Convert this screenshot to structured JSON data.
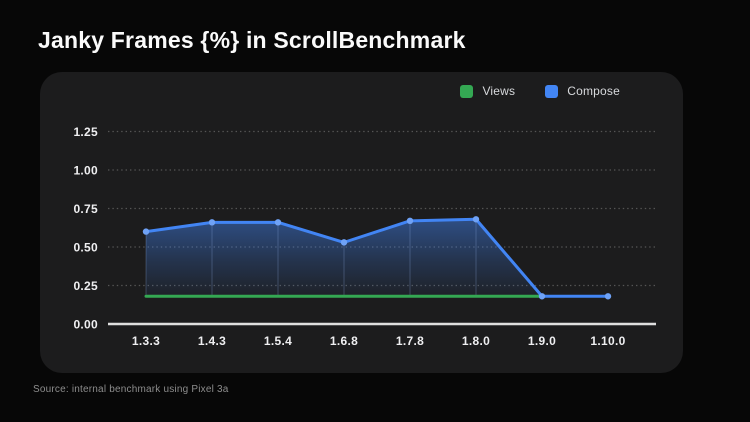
{
  "page": {
    "title": "Janky Frames {%} in ScrollBenchmark",
    "source_note": "Source: internal benchmark using Pixel 3a"
  },
  "legend": [
    {
      "label": "Views",
      "color": "#34A853"
    },
    {
      "label": "Compose",
      "color": "#4285F4"
    }
  ],
  "chart_data": {
    "type": "line",
    "title": "Janky Frames {%} in ScrollBenchmark",
    "categories": [
      "1.3.3",
      "1.4.3",
      "1.5.4",
      "1.6.8",
      "1.7.8",
      "1.8.0",
      "1.9.0",
      "1.10.0"
    ],
    "series": [
      {
        "name": "Views",
        "color": "#34A853",
        "values": [
          0.18,
          0.18,
          0.18,
          0.18,
          0.18,
          0.18,
          0.18,
          null
        ],
        "markers": false,
        "area": false
      },
      {
        "name": "Compose",
        "color": "#4285F4",
        "marker_color": "#6FA2F6",
        "values": [
          0.6,
          0.66,
          0.66,
          0.53,
          0.67,
          0.68,
          0.18,
          0.18
        ],
        "markers": true,
        "area": true
      }
    ],
    "ylim": [
      0,
      1.25
    ],
    "yticks": [
      0,
      0.25,
      0.5,
      0.75,
      1.0,
      1.25
    ],
    "ytick_labels": [
      "0.00",
      "0.25",
      "0.50",
      "0.75",
      "1.00",
      "1.25"
    ],
    "xlabel": "",
    "ylabel": "",
    "grid": "dotted-horizontal",
    "legend_position": "top-right",
    "grid_color": "#646464",
    "axis_color": "#DFDFDF"
  }
}
